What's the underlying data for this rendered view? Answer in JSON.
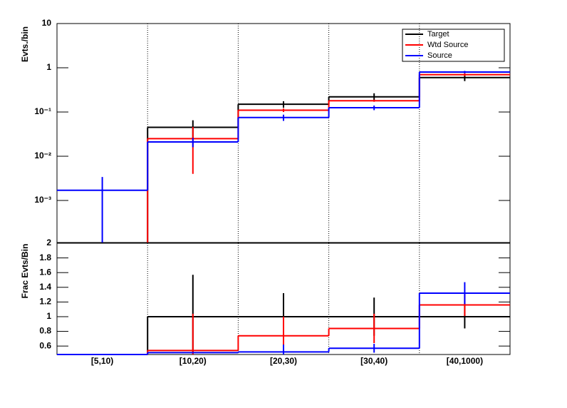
{
  "chart_data": [
    {
      "type": "step",
      "log": true,
      "ylabel": "Evts./bin",
      "ylim": [
        0.000112,
        10
      ],
      "yticks": [
        {
          "value": 0.001,
          "label": "10⁻³"
        },
        {
          "value": 0.01,
          "label": "10⁻²"
        },
        {
          "value": 0.1,
          "label": "10⁻¹"
        },
        1,
        10
      ],
      "grid": true,
      "legend": "upper right",
      "series": [
        {
          "name": "Target",
          "color": "#000000",
          "values": [
            null,
            0.045,
            0.15,
            0.22,
            0.6
          ],
          "errors": [
            null,
            0.02,
            0.025,
            0.045,
            0.1
          ]
        },
        {
          "name": "Wtd Source",
          "color": "#ff0000",
          "values": [
            null,
            0.025,
            0.11,
            0.18,
            0.7
          ],
          "errors": [
            null,
            0.021,
            0.01,
            0.01,
            0.05
          ]
        },
        {
          "name": "Source",
          "color": "#0000ff",
          "values": [
            0.0017,
            0.021,
            0.075,
            0.125,
            0.8
          ],
          "errors": [
            0.0017,
            0.005,
            0.012,
            0.015,
            0.05
          ]
        }
      ]
    },
    {
      "type": "step",
      "log": false,
      "ylabel": "Frac Evts/Bin",
      "categories": [
        "[5,10)",
        "[10,20)",
        "[20,30)",
        "[30,40)",
        "[40,1000)"
      ],
      "ylim": [
        0.485,
        2
      ],
      "yticks": [
        0.6,
        0.8,
        1,
        1.2,
        1.4,
        1.6,
        1.8,
        2
      ],
      "grid": true,
      "series": [
        {
          "color": "#000000",
          "values": [
            0,
            1,
            1,
            1,
            1
          ],
          "errors": [
            null,
            0.57,
            0.32,
            0.26,
            0.16
          ]
        },
        {
          "color": "#ff0000",
          "values": [
            0,
            0.54,
            0.74,
            0.84,
            1.16
          ],
          "errors": [
            null,
            0.5,
            0.26,
            0.2,
            0.15
          ]
        },
        {
          "color": "#0000ff",
          "values": [
            0,
            0.51,
            0.52,
            0.57,
            1.32
          ],
          "errors": [
            null,
            null,
            0.1,
            0.06,
            0.15
          ]
        }
      ]
    }
  ]
}
